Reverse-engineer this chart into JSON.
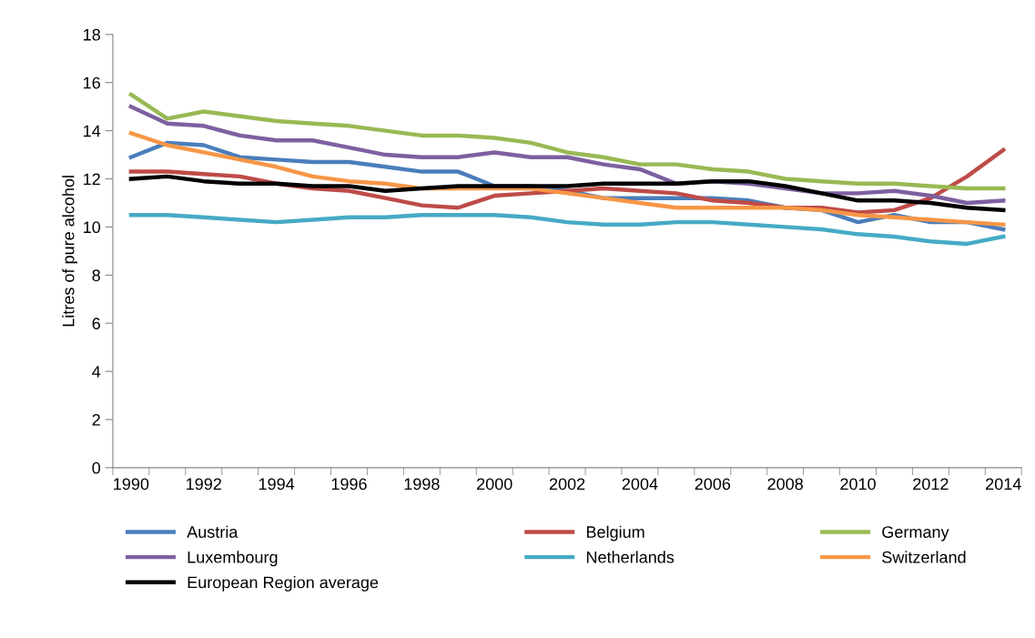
{
  "chart_data": {
    "type": "line",
    "ylabel": "Litres of pure alcohol",
    "categories": [
      "1990",
      null,
      "1992",
      null,
      "1994",
      null,
      "1996",
      null,
      "1998",
      null,
      "2000",
      null,
      "2002",
      null,
      "2004",
      null,
      "2006",
      null,
      "2008",
      null,
      "2010",
      null,
      "2012",
      null,
      "2014"
    ],
    "series": [
      {
        "name": "Austria",
        "color": "#4a7ebb",
        "values": [
          12.9,
          13.5,
          13.4,
          12.9,
          12.8,
          12.7,
          12.7,
          12.5,
          12.3,
          12.3,
          11.7,
          11.7,
          11.5,
          11.2,
          11.2,
          11.2,
          11.2,
          11.1,
          10.8,
          10.7,
          10.2,
          10.5,
          10.2,
          10.2,
          9.9
        ]
      },
      {
        "name": "Belgium",
        "color": "#be4b48",
        "values": [
          12.3,
          12.3,
          12.2,
          12.1,
          11.8,
          11.6,
          11.5,
          11.2,
          10.9,
          10.8,
          11.3,
          11.4,
          11.5,
          11.6,
          11.5,
          11.4,
          11.1,
          11.0,
          10.8,
          10.8,
          10.6,
          10.7,
          11.2,
          12.1,
          13.2
        ]
      },
      {
        "name": "Germany",
        "color": "#98b954",
        "values": [
          15.5,
          14.5,
          14.8,
          14.6,
          14.4,
          14.3,
          14.2,
          14.0,
          13.8,
          13.8,
          13.7,
          13.5,
          13.1,
          12.9,
          12.6,
          12.6,
          12.4,
          12.3,
          12.0,
          11.9,
          11.8,
          11.8,
          11.7,
          11.6,
          11.6
        ]
      },
      {
        "name": "Luxembourg",
        "color": "#7d60a0",
        "values": [
          15.0,
          14.3,
          14.2,
          13.8,
          13.6,
          13.6,
          13.3,
          13.0,
          12.9,
          12.9,
          13.1,
          12.9,
          12.9,
          12.6,
          12.4,
          11.8,
          11.9,
          11.8,
          11.6,
          11.4,
          11.4,
          11.5,
          11.3,
          11.0,
          11.1
        ]
      },
      {
        "name": "Netherlands",
        "color": "#46aac5",
        "values": [
          10.5,
          10.5,
          10.4,
          10.3,
          10.2,
          10.3,
          10.4,
          10.4,
          10.5,
          10.5,
          10.5,
          10.4,
          10.2,
          10.1,
          10.1,
          10.2,
          10.2,
          10.1,
          10.0,
          9.9,
          9.7,
          9.6,
          9.4,
          9.3,
          9.6
        ]
      },
      {
        "name": "Switzerland",
        "color": "#f79646",
        "values": [
          13.9,
          13.4,
          13.1,
          12.8,
          12.5,
          12.1,
          11.9,
          11.8,
          11.6,
          11.6,
          11.6,
          11.6,
          11.4,
          11.2,
          11.0,
          10.8,
          10.8,
          10.8,
          10.8,
          10.7,
          10.5,
          10.4,
          10.3,
          10.2,
          10.1
        ]
      },
      {
        "name": "European Region average",
        "color": "#000000",
        "values": [
          12.0,
          12.1,
          11.9,
          11.8,
          11.8,
          11.7,
          11.7,
          11.5,
          11.6,
          11.7,
          11.7,
          11.7,
          11.7,
          11.8,
          11.8,
          11.8,
          11.9,
          11.9,
          11.7,
          11.4,
          11.1,
          11.1,
          11.0,
          10.8,
          10.7
        ]
      }
    ],
    "ylim": [
      0,
      18
    ],
    "yticks": [
      0,
      2,
      4,
      6,
      8,
      10,
      12,
      14,
      16,
      18
    ],
    "grid": false,
    "legend": "bottom",
    "marker": "none",
    "line_style": "solid"
  }
}
